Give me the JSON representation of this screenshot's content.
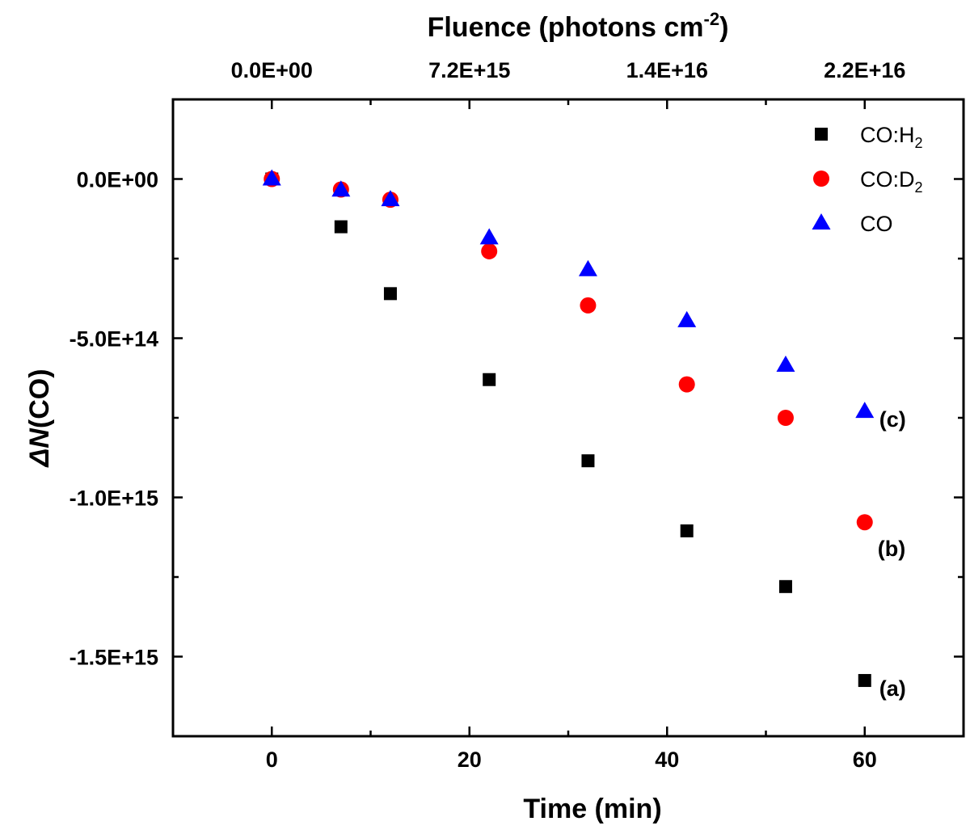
{
  "chart_data": {
    "type": "scatter",
    "xlabel": "Time (min)",
    "ylabel_prefix": "Δ",
    "ylabel_var": "N",
    "ylabel_suffix": "(CO)",
    "top_xlabel_main": "Fluence (photons cm",
    "top_xlabel_sup": "-2",
    "top_xlabel_close": ")",
    "xlim": [
      -10,
      70
    ],
    "ylim": [
      -1750000000000000.0,
      250000000000000.0
    ],
    "x_ticks": [
      0,
      20,
      40,
      60
    ],
    "x_tick_labels": [
      "0",
      "20",
      "40",
      "60"
    ],
    "y_ticks": [
      0,
      -500000000000000.0,
      -1000000000000000.0,
      -1500000000000000.0
    ],
    "y_tick_labels": [
      "0.0E+00",
      "-5.0E+14",
      "-1.0E+15",
      "-1.5E+15"
    ],
    "top_ticks": [
      0,
      20,
      40,
      60
    ],
    "top_tick_labels": [
      "0.0E+00",
      "7.2E+15",
      "1.4E+16",
      "2.2E+16"
    ],
    "series": [
      {
        "name": "CO:H",
        "name_sub": "2",
        "marker": "square",
        "color": "#000000",
        "x": [
          0,
          7,
          12,
          22,
          32,
          42,
          52,
          60
        ],
        "y": [
          0,
          -150000000000000.0,
          -360000000000000.0,
          -630000000000000.0,
          -885000000000000.0,
          -1105000000000000.0,
          -1280000000000000.0,
          -1575000000000000.0
        ],
        "annotation": "(a)"
      },
      {
        "name": "CO:D",
        "name_sub": "2",
        "marker": "circle",
        "color": "#ff0000",
        "x": [
          0,
          7,
          12,
          22,
          32,
          42,
          52,
          60
        ],
        "y": [
          0,
          -33000000000000.0,
          -65000000000000.0,
          -227000000000000.0,
          -397000000000000.0,
          -645000000000000.0,
          -750000000000000.0,
          -1078000000000000.0
        ],
        "annotation": "(b)"
      },
      {
        "name": "CO",
        "name_sub": "",
        "marker": "triangle",
        "color": "#0000ff",
        "x": [
          0,
          7,
          12,
          22,
          32,
          42,
          52,
          60
        ],
        "y": [
          0,
          -35000000000000.0,
          -65000000000000.0,
          -185000000000000.0,
          -285000000000000.0,
          -445000000000000.0,
          -585000000000000.0,
          -730000000000000.0
        ],
        "annotation": "(c)"
      }
    ]
  }
}
